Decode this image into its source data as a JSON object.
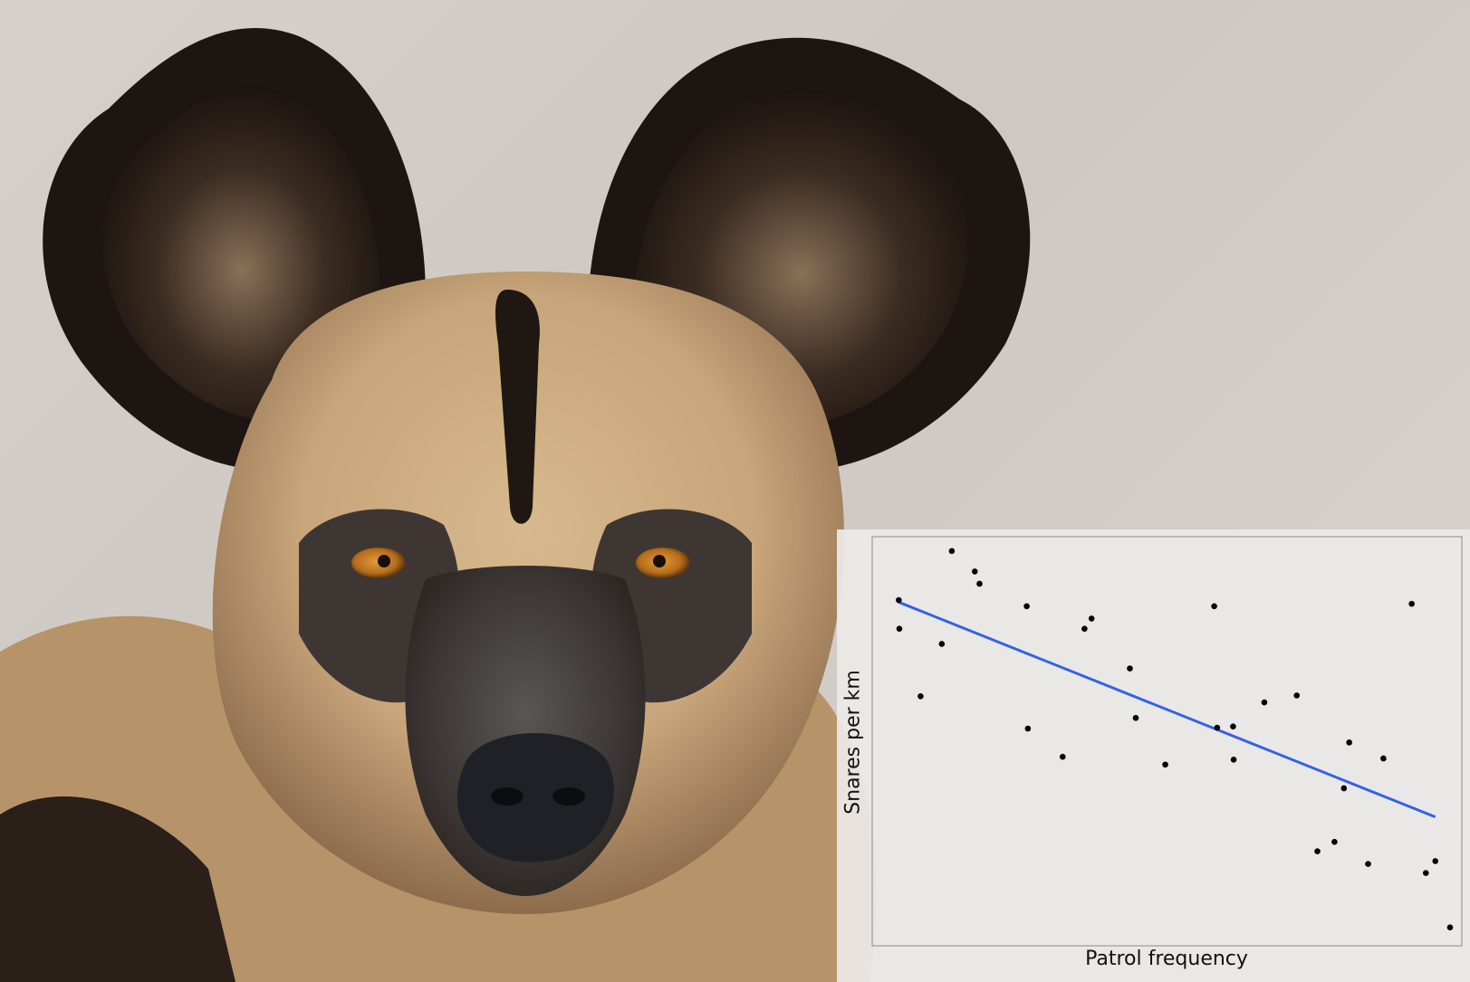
{
  "photo": {
    "subject": "african-wild-dog",
    "colors": {
      "background": "#d3cdc8",
      "fur_tan": "#c9a77c",
      "fur_dark": "#231a14",
      "eye": "#b9731f",
      "nose": "#1f2126"
    }
  },
  "chart_data": {
    "type": "scatter",
    "title": "",
    "xlabel": "Patrol frequency",
    "ylabel": "Snares per km",
    "grid": false,
    "legend": "none",
    "xlim": [
      0,
      1
    ],
    "ylim": [
      0,
      1
    ],
    "colors": {
      "points": "#000000",
      "trend": "#3461e8",
      "frame": "#9a9a9a",
      "panel": "#ecebe8"
    },
    "series": [
      {
        "kind": "points",
        "x": [
          0.045,
          0.046,
          0.082,
          0.118,
          0.135,
          0.174,
          0.182,
          0.262,
          0.264,
          0.323,
          0.36,
          0.372,
          0.437,
          0.447,
          0.497,
          0.58,
          0.585,
          0.612,
          0.613,
          0.665,
          0.72,
          0.755,
          0.784,
          0.8,
          0.809,
          0.841,
          0.867,
          0.915,
          0.939,
          0.955,
          0.98
        ],
        "y": [
          0.845,
          0.775,
          0.61,
          0.738,
          0.965,
          0.915,
          0.885,
          0.83,
          0.531,
          0.462,
          0.775,
          0.8,
          0.678,
          0.557,
          0.443,
          0.83,
          0.533,
          0.536,
          0.455,
          0.595,
          0.612,
          0.231,
          0.254,
          0.385,
          0.497,
          0.2,
          0.458,
          0.836,
          0.178,
          0.207,
          0.045
        ]
      },
      {
        "kind": "trend",
        "x": [
          0.045,
          0.955
        ],
        "y": [
          0.84,
          0.315
        ]
      }
    ]
  }
}
